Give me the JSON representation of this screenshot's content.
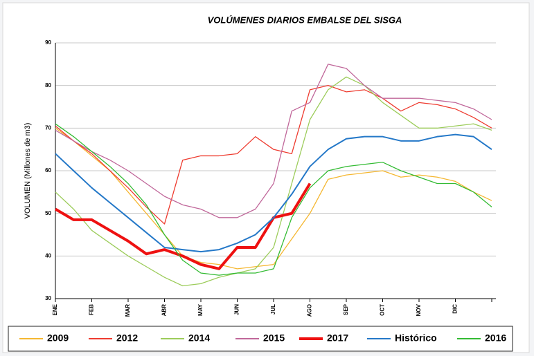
{
  "chart_data": {
    "type": "line",
    "title": "VOLÚMENES DIARIOS EMBALSE DEL SISGA",
    "y_label": "VOLUMEN (Millones de m3)",
    "x": [
      0,
      0.5,
      1,
      1.5,
      2,
      2.5,
      3,
      3.5,
      4,
      4.5,
      5,
      5.5,
      6,
      6.5,
      7,
      7.5,
      8,
      8.5,
      9,
      9.5,
      10,
      10.5,
      11,
      11.5,
      12
    ],
    "xlim": [
      0,
      12
    ],
    "xticks": [
      {
        "value": 0,
        "label": "ENE"
      },
      {
        "value": 1,
        "label": "FEB"
      },
      {
        "value": 2,
        "label": "MAR"
      },
      {
        "value": 3,
        "label": "ABR"
      },
      {
        "value": 4,
        "label": "MAY"
      },
      {
        "value": 5,
        "label": "JUN"
      },
      {
        "value": 6,
        "label": "JUL"
      },
      {
        "value": 7,
        "label": "AGO"
      },
      {
        "value": 8,
        "label": "SEP"
      },
      {
        "value": 9,
        "label": "OCT"
      },
      {
        "value": 10,
        "label": "NOV"
      },
      {
        "value": 11,
        "label": "DIC"
      }
    ],
    "ylim": [
      30,
      90
    ],
    "yticks": [
      30,
      40,
      50,
      60,
      70,
      80,
      90
    ],
    "grid": true,
    "legend": "bottom",
    "series": [
      {
        "name": "2009",
        "color": "#f5b731",
        "width": 1.3,
        "values": [
          70,
          67,
          63.5,
          60,
          55,
          50,
          45,
          40,
          38.5,
          38,
          37,
          37.5,
          38,
          44,
          50,
          58,
          59,
          59.5,
          60,
          58.5,
          59,
          58.5,
          57.5,
          55,
          53
        ]
      },
      {
        "name": "2012",
        "color": "#ee3b2f",
        "width": 1.3,
        "values": [
          70.5,
          67,
          64,
          60,
          56,
          51.5,
          47.5,
          62.5,
          63.5,
          63.5,
          64,
          68,
          65,
          64,
          79,
          80,
          78.5,
          79,
          77,
          74,
          76,
          75.5,
          74.5,
          72.5,
          70
        ]
      },
      {
        "name": "2014",
        "color": "#9ccc5a",
        "width": 1.3,
        "values": [
          55,
          51,
          46,
          43,
          40,
          37.5,
          35,
          33,
          33.5,
          35,
          36,
          37,
          42,
          57,
          72,
          79,
          82,
          80,
          76,
          73,
          70,
          70,
          70.5,
          71,
          69.5
        ]
      },
      {
        "name": "2015",
        "color": "#c0679a",
        "width": 1.3,
        "values": [
          69.5,
          67,
          64.5,
          62.5,
          60,
          57,
          54,
          52,
          51,
          49,
          49,
          51,
          57,
          74,
          76,
          85,
          84,
          80,
          77,
          77,
          77,
          76.5,
          76,
          74.5,
          72
        ]
      },
      {
        "name": "2017",
        "color": "#ee1111",
        "width": 4,
        "values": [
          51,
          48.5,
          48.5,
          46,
          43.5,
          40.5,
          41.5,
          40,
          38,
          37,
          42,
          42,
          49,
          50,
          57,
          null,
          null,
          null,
          null,
          null,
          null,
          null,
          null,
          null,
          null
        ]
      },
      {
        "name": "Histórico",
        "color": "#2478c8",
        "width": 2,
        "values": [
          64,
          60,
          56,
          52.5,
          49,
          45.5,
          42,
          41.5,
          41,
          41.5,
          43,
          45,
          49,
          54.5,
          61,
          65,
          67.5,
          68,
          68,
          67,
          67,
          68,
          68.5,
          68,
          65
        ]
      },
      {
        "name": "2016",
        "color": "#33bb33",
        "width": 1.3,
        "values": [
          71,
          68,
          64.5,
          61,
          57,
          52,
          45,
          39,
          36,
          35.5,
          36,
          36,
          37,
          49,
          56,
          60,
          61,
          61.5,
          62,
          60,
          58.5,
          57,
          57,
          55,
          51.5
        ]
      }
    ]
  }
}
